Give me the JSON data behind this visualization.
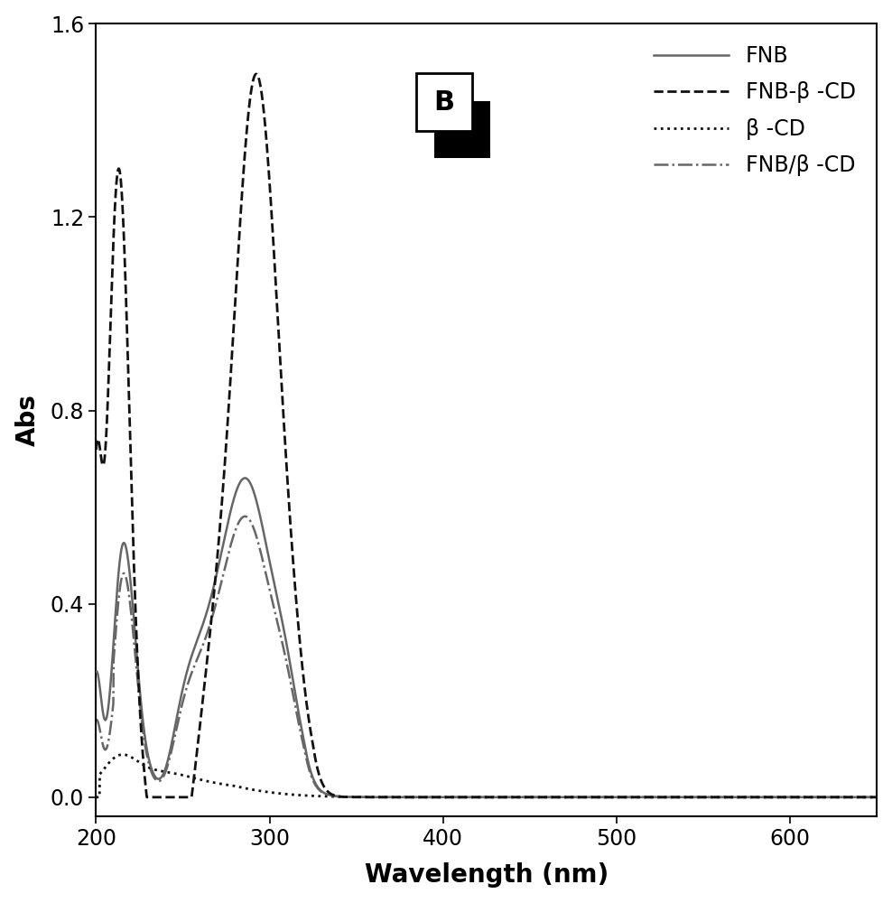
{
  "title": "B",
  "xlabel": "Wavelength (nm)",
  "ylabel": "Abs",
  "xlim": [
    200,
    650
  ],
  "ylim": [
    -0.04,
    1.6
  ],
  "yticks": [
    0.0,
    0.4,
    0.8,
    1.2,
    1.6
  ],
  "xticks": [
    200,
    300,
    400,
    500,
    600
  ],
  "legend_labels": [
    "FNB",
    "FNB-β -CD",
    "β -CD",
    "FNB/β -CD"
  ],
  "color_gray": "#666666",
  "color_black": "#111111",
  "background_color": "#ffffff",
  "label_fontsize": 20,
  "tick_fontsize": 17,
  "legend_fontsize": 17,
  "title_fontsize": 22,
  "lw_solid": 1.8,
  "lw_dashed": 2.0,
  "lw_dotted": 2.0,
  "lw_dashdot": 1.8
}
